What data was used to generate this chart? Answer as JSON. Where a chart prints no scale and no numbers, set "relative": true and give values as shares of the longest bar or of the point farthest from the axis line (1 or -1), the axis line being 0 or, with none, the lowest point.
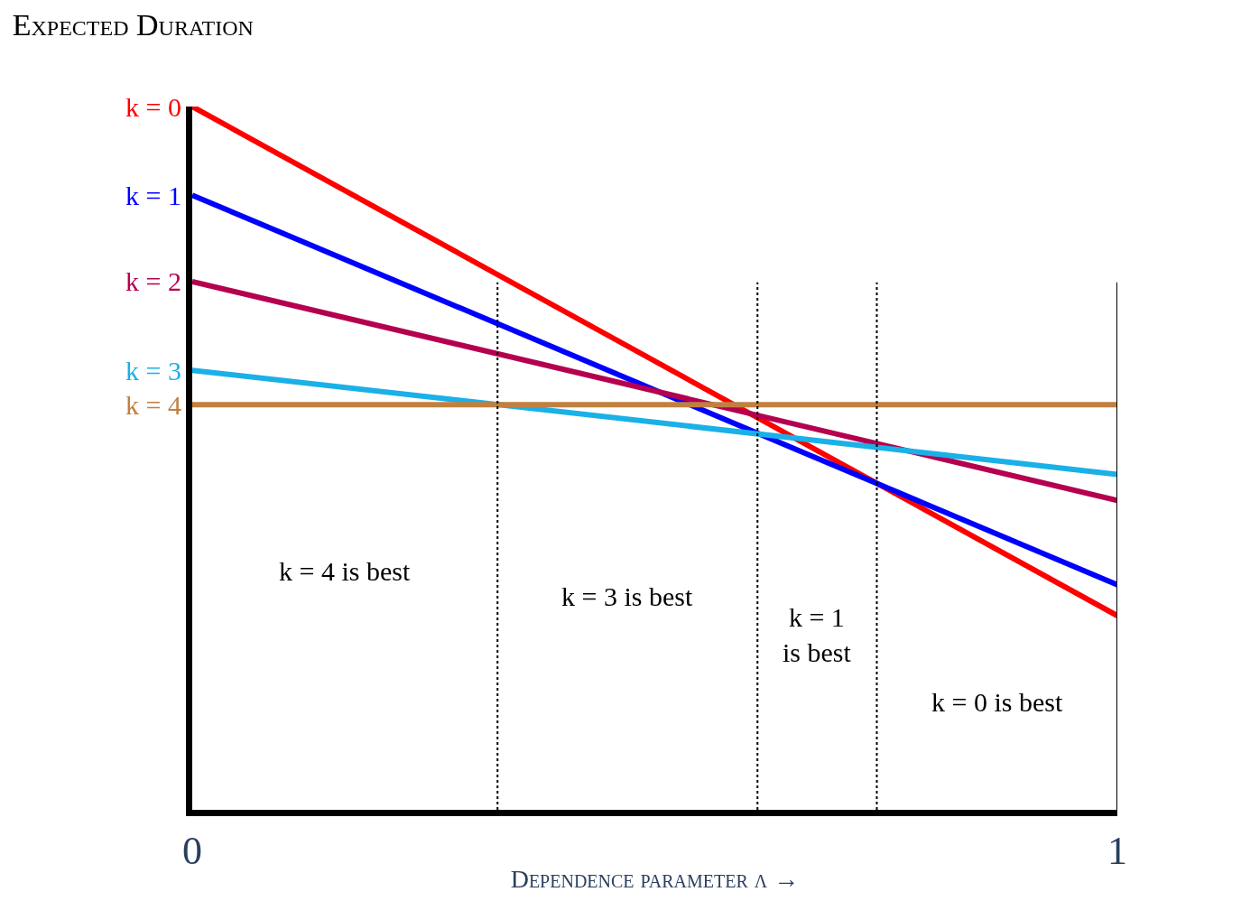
{
  "chart_data": {
    "type": "line",
    "title": "Expected Duration",
    "xlabel": "Dependence parameter λ →",
    "relative": true,
    "x": [
      0,
      1
    ],
    "xlim": [
      0,
      1
    ],
    "xticks": [
      0,
      1
    ],
    "series": [
      {
        "name": "k = 0",
        "color": "#ff0000",
        "values": [
          1,
          0.276
        ]
      },
      {
        "name": "k = 1",
        "color": "#0000ff",
        "values": [
          0.874,
          0.32
        ]
      },
      {
        "name": "k = 2",
        "color": "#b5004f",
        "values": [
          0.751,
          0.44
        ]
      },
      {
        "name": "k = 3",
        "color": "#1ab0e8",
        "values": [
          0.625,
          0.477
        ]
      },
      {
        "name": "k = 4",
        "color": "#c08040",
        "values": [
          0.576,
          0.576
        ]
      }
    ],
    "ref_lines": [
      {
        "axis": "x",
        "value": 0.33,
        "line_style": "dotted",
        "color": "#000000"
      },
      {
        "axis": "x",
        "value": 0.611,
        "line_style": "dotted",
        "color": "#000000"
      },
      {
        "axis": "x",
        "value": 0.74,
        "line_style": "dotted",
        "color": "#000000"
      },
      {
        "axis": "x",
        "value": 1,
        "line_style": "solid",
        "color": "#000000"
      }
    ],
    "annotations": [
      "k = 4 is best",
      "k = 3 is best",
      "k = 1\nis best",
      "k = 0 is best"
    ],
    "legend": false,
    "marker": "none",
    "line_style": "solid"
  }
}
